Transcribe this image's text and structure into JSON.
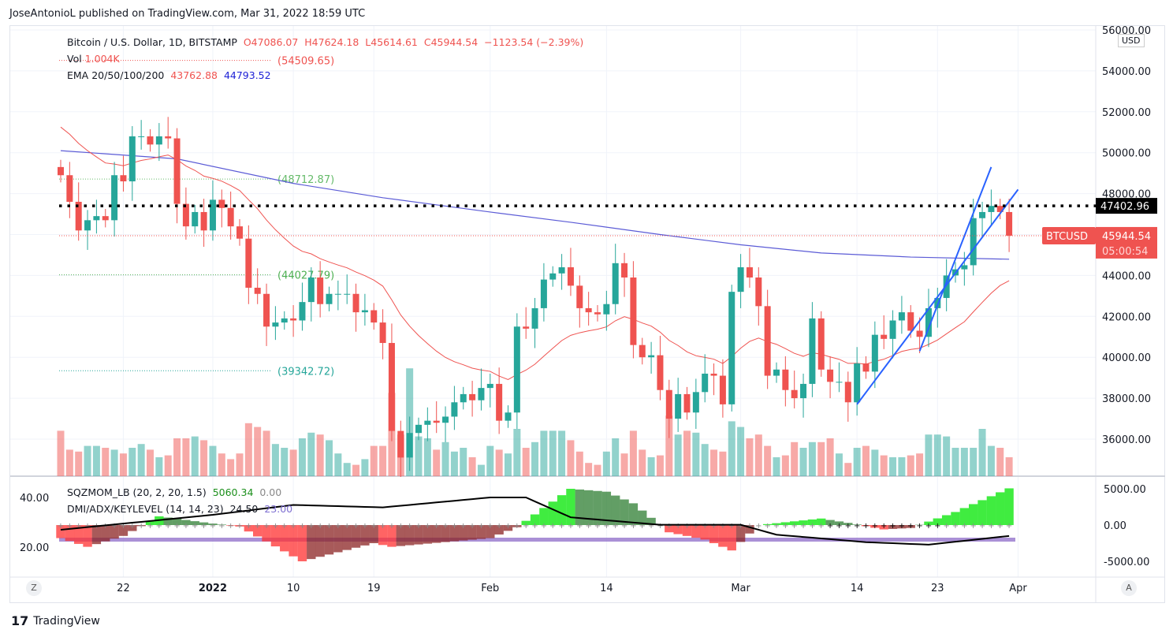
{
  "header": {
    "publisher": "JoseAntonioL published on TradingView.com, Mar 31, 2022 18:59 UTC"
  },
  "legend": {
    "symbol": "Bitcoin / U.S. Dollar, 1D, BITSTAMP",
    "o": "O47086.07",
    "h": "H47624.18",
    "l": "L45614.61",
    "c": "C45944.54",
    "chg": "−1123.54 (−2.39%)",
    "vol_label": "Vol",
    "vol_value": "1.004K",
    "ema_label": "EMA 20/50/100/200",
    "ema1": "43762.88",
    "ema2": "44793.52"
  },
  "levels": [
    {
      "label": "(54509.65)",
      "price": 54509.65,
      "color": "#ef5350"
    },
    {
      "label": "(48712.87)",
      "price": 48712.87,
      "color": "#66bb6a"
    },
    {
      "label": "(44027.79)",
      "price": 44027.79,
      "color": "#4caf50"
    },
    {
      "label": "(39342.72)",
      "price": 39342.72,
      "color": "#26a69a"
    }
  ],
  "hline": {
    "price": 47402.96,
    "label": "47402.96"
  },
  "last": {
    "symbol": "BTCUSD",
    "price": 45944.54,
    "price_label": "45944.54",
    "countdown": "05:00:54"
  },
  "currency": "USD",
  "price_axis": [
    "56000.00",
    "54000.00",
    "52000.00",
    "50000.00",
    "48000.00",
    "44000.00",
    "42000.00",
    "40000.00",
    "38000.00",
    "36000.00"
  ],
  "time_axis": [
    {
      "label": "22",
      "date": "2021-12-22"
    },
    {
      "label": "2022",
      "date": "2022-01-01",
      "bold": true
    },
    {
      "label": "10",
      "date": "2022-01-10"
    },
    {
      "label": "19",
      "date": "2022-01-19"
    },
    {
      "label": "Feb",
      "date": "2022-02-01"
    },
    {
      "label": "14",
      "date": "2022-02-14"
    },
    {
      "label": "Mar",
      "date": "2022-03-01"
    },
    {
      "label": "14",
      "date": "2022-03-14"
    },
    {
      "label": "23",
      "date": "2022-03-23"
    },
    {
      "label": "Apr",
      "date": "2022-04-01"
    }
  ],
  "indicator": {
    "sqz_label": "SQZMOM_LB (20, 2, 20, 1.5)",
    "sqz_val": "5060.34",
    "sqz_val2": "0.00",
    "dmi_label": "DMI/ADX/KEYLEVEL (14, 14, 23)",
    "adx_val": "24.50",
    "key_val": "23.00",
    "right_axis": [
      "5000.00",
      "0.00",
      "-5000.00"
    ],
    "left_axis": [
      "40.00",
      "20.00"
    ],
    "key_level": 23
  },
  "footer": {
    "brand": "TradingView"
  },
  "buttons": {
    "z": "Z",
    "a": "A"
  },
  "chart_data": {
    "type": "candlestick",
    "start_date": "2021-12-15",
    "closes": [
      48900,
      47600,
      46200,
      46700,
      46900,
      46700,
      48900,
      48600,
      50800,
      50800,
      50400,
      50800,
      50700,
      47500,
      46400,
      47100,
      46200,
      47700,
      47300,
      46400,
      45800,
      43400,
      43100,
      41500,
      41700,
      41900,
      41800,
      42700,
      43900,
      42600,
      43100,
      43100,
      43100,
      42200,
      42300,
      41700,
      40700,
      36400,
      35100,
      36300,
      36700,
      36900,
      36800,
      37100,
      37800,
      38200,
      37900,
      38500,
      38700,
      36900,
      37300,
      41500,
      41400,
      42400,
      43800,
      44100,
      44400,
      43500,
      42400,
      42200,
      42100,
      42600,
      44600,
      43900,
      40600,
      40000,
      40100,
      38400,
      37000,
      38200,
      37300,
      38300,
      39200,
      39100,
      37700,
      43200,
      44400,
      43900,
      42500,
      39100,
      39400,
      38400,
      38000,
      38700,
      41900,
      39400,
      38800,
      38800,
      37800,
      39700,
      39300,
      41100,
      40900,
      41800,
      42200,
      41300,
      41000,
      42400,
      42900,
      44000,
      44300,
      44500,
      46800,
      47100,
      47400,
      47100,
      45944.54
    ],
    "volumes_k": [
      2.4,
      1.4,
      1.3,
      1.6,
      1.6,
      1.5,
      1.4,
      1.2,
      1.5,
      1.7,
      1.4,
      1.0,
      1.1,
      2.0,
      2.0,
      2.1,
      1.9,
      1.6,
      1.2,
      0.9,
      1.2,
      2.8,
      2.6,
      2.4,
      1.7,
      1.5,
      1.4,
      2.0,
      2.3,
      2.2,
      1.9,
      1.2,
      0.7,
      0.6,
      0.9,
      1.6,
      1.6,
      4.4,
      2.2,
      5.7,
      2.1,
      2.0,
      1.4,
      1.8,
      1.3,
      1.5,
      1.0,
      0.6,
      1.6,
      1.4,
      1.2,
      2.5,
      1.5,
      1.8,
      2.4,
      2.4,
      2.4,
      1.9,
      1.3,
      0.7,
      0.6,
      1.3,
      2.0,
      1.2,
      2.4,
      1.4,
      1.0,
      1.1,
      3.2,
      2.2,
      2.4,
      2.3,
      1.7,
      1.4,
      1.3,
      2.9,
      2.6,
      2.0,
      2.2,
      1.6,
      1.0,
      1.1,
      1.8,
      1.5,
      1.8,
      1.8,
      2.0,
      1.2,
      0.7,
      1.5,
      1.6,
      1.4,
      1.1,
      1.0,
      1.0,
      1.1,
      1.2,
      2.2,
      2.2,
      2.1,
      1.5,
      1.5,
      1.5,
      2.5,
      1.6,
      1.5,
      1.0
    ],
    "ema200": [
      [
        "2021-12-15",
        50100
      ],
      [
        "2021-12-28",
        49700
      ],
      [
        "2022-01-10",
        48500
      ],
      [
        "2022-01-20",
        47800
      ],
      [
        "2022-02-01",
        47100
      ],
      [
        "2022-02-10",
        46600
      ],
      [
        "2022-02-20",
        46000
      ],
      [
        "2022-03-01",
        45500
      ],
      [
        "2022-03-10",
        45100
      ],
      [
        "2022-03-20",
        44900
      ],
      [
        "2022-03-31",
        44793.52
      ]
    ],
    "ema20_last": 43762.88,
    "channel": [
      [
        [
          "2022-03-14",
          37700
        ],
        [
          "2022-04-01",
          48200
        ]
      ],
      [
        [
          "2022-03-21",
          40300
        ],
        [
          "2022-03-29",
          49300
        ]
      ]
    ],
    "sqzmom": [
      [
        "2021-12-15",
        -1800
      ],
      [
        "2021-12-18",
        -3000
      ],
      [
        "2021-12-22",
        -1500
      ],
      [
        "2021-12-26",
        1200
      ],
      [
        "2022-01-01",
        200
      ],
      [
        "2022-01-04",
        -200
      ],
      [
        "2022-01-11",
        -5000
      ],
      [
        "2022-01-19",
        -2500
      ],
      [
        "2022-01-21",
        -3000
      ],
      [
        "2022-02-01",
        -1800
      ],
      [
        "2022-02-04",
        -300
      ],
      [
        "2022-02-10",
        5000
      ],
      [
        "2022-02-14",
        4600
      ],
      [
        "2022-02-17",
        3000
      ],
      [
        "2022-02-21",
        -1000
      ],
      [
        "2022-02-25",
        -2000
      ],
      [
        "2022-02-28",
        -3500
      ],
      [
        "2022-03-03",
        0
      ],
      [
        "2022-03-10",
        900
      ],
      [
        "2022-03-13",
        300
      ],
      [
        "2022-03-17",
        -600
      ],
      [
        "2022-03-20",
        -400
      ],
      [
        "2022-03-25",
        1800
      ],
      [
        "2022-03-31",
        5060.34
      ]
    ],
    "adx": [
      [
        "2021-12-15",
        27
      ],
      [
        "2022-01-01",
        33
      ],
      [
        "2022-01-10",
        37
      ],
      [
        "2022-01-20",
        36
      ],
      [
        "2022-02-01",
        40
      ],
      [
        "2022-02-05",
        40
      ],
      [
        "2022-02-10",
        32
      ],
      [
        "2022-02-20",
        29
      ],
      [
        "2022-03-01",
        29
      ],
      [
        "2022-03-05",
        25
      ],
      [
        "2022-03-15",
        22
      ],
      [
        "2022-03-22",
        21
      ],
      [
        "2022-03-31",
        24.5
      ]
    ],
    "up_color": "#26a69a",
    "down_color": "#ef5350"
  }
}
